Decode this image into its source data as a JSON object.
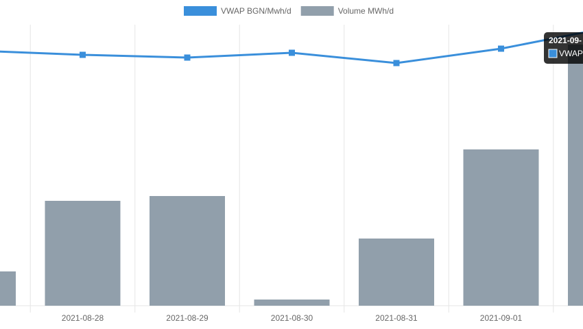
{
  "chart_data": {
    "type": "bar-line",
    "categories": [
      null,
      "2021-08-28",
      "2021-08-29",
      "2021-08-30",
      "2021-08-31",
      "2021-09-01",
      null
    ],
    "series": [
      {
        "name": "VWAP BGN/Mwh/d",
        "color": "#3a8fdb",
        "type": "line",
        "axis": "y2",
        "values": [
          372,
          366,
          362,
          369,
          354,
          375,
          405
        ]
      },
      {
        "name": "Volume MWh/d",
        "color": "#919fab",
        "type": "bar",
        "values": [
          50,
          153,
          160,
          9,
          98,
          228,
          381
        ]
      }
    ],
    "ylim": [
      0,
      410
    ],
    "y2lim": [
      0,
      410
    ],
    "tooltip": {
      "title": "2021-09-",
      "label": "VWAP"
    }
  }
}
